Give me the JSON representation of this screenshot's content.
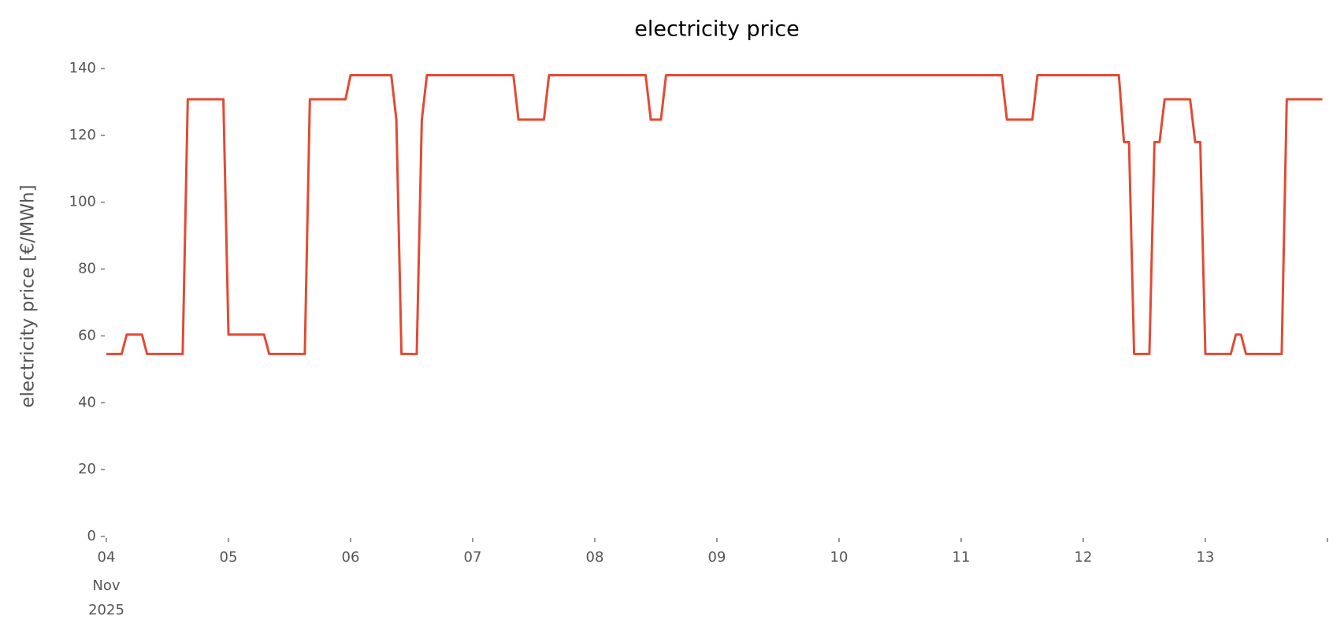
{
  "chart_data": {
    "type": "line",
    "title": "electricity price",
    "ylabel": "electricity price [€/MWh]",
    "x_context": [
      "Nov",
      "2025"
    ],
    "x": [
      0,
      3,
      4,
      7,
      8,
      15,
      16,
      23,
      24,
      31,
      32,
      39,
      40,
      47,
      48,
      56,
      57,
      58,
      61,
      62,
      63,
      80,
      81,
      86,
      87,
      106,
      107,
      109,
      110,
      176,
      177,
      182,
      183,
      199,
      200,
      201,
      202,
      205,
      206,
      207,
      208,
      213,
      214,
      215,
      216,
      221,
      222,
      223,
      224,
      231,
      232,
      239
    ],
    "series": [
      {
        "name": "electricity price",
        "color": "#E24A33",
        "values": [
          54.6,
          54.6,
          60.4,
          60.4,
          54.6,
          54.6,
          130.8,
          130.8,
          60.4,
          60.4,
          54.6,
          54.6,
          130.8,
          130.8,
          138,
          138,
          124.7,
          54.6,
          54.6,
          124.7,
          138,
          138,
          124.7,
          124.7,
          138,
          138,
          124.7,
          124.7,
          138,
          138,
          124.7,
          124.7,
          138,
          138,
          118,
          118,
          54.6,
          54.6,
          118,
          118,
          130.8,
          130.8,
          118,
          118,
          54.6,
          54.6,
          60.4,
          60.4,
          54.6,
          54.6,
          130.8,
          130.8
        ]
      }
    ],
    "xlim": [
      0,
      240
    ],
    "xticks": [
      {
        "value": 0,
        "label": "04"
      },
      {
        "value": 24,
        "label": "05"
      },
      {
        "value": 48,
        "label": "06"
      },
      {
        "value": 72,
        "label": "07"
      },
      {
        "value": 96,
        "label": "08"
      },
      {
        "value": 120,
        "label": "09"
      },
      {
        "value": 144,
        "label": "10"
      },
      {
        "value": 168,
        "label": "11"
      },
      {
        "value": 192,
        "label": "12"
      },
      {
        "value": 216,
        "label": "13"
      },
      {
        "value": 240,
        "label": null
      }
    ],
    "ylim": [
      0,
      140
    ],
    "yticks": [
      0,
      20,
      40,
      60,
      80,
      100,
      120,
      140
    ],
    "grid": false
  }
}
